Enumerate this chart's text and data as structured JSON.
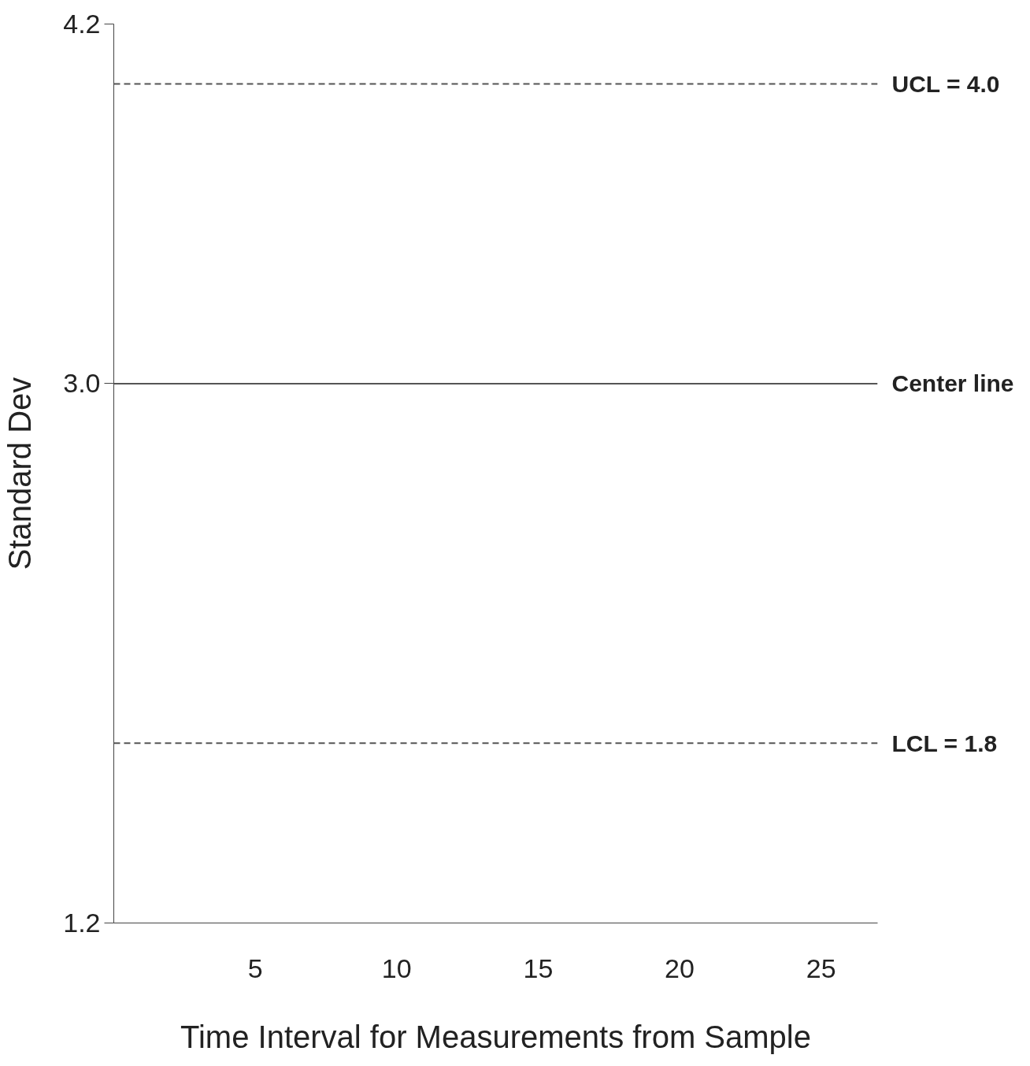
{
  "chart_data": {
    "type": "line",
    "xlabel": "Time Interval for Measurements from Sample",
    "ylabel": "Standard Dev",
    "xlim": [
      0,
      27
    ],
    "xticks": [
      5,
      10,
      15,
      20,
      25
    ],
    "ylim": [
      1.2,
      4.2
    ],
    "yticks": [
      {
        "value": 1.2,
        "label": "1.2"
      },
      {
        "value": 3.0,
        "label": "3.0"
      },
      {
        "value": 4.2,
        "label": "4.2"
      }
    ],
    "ref_lines": [
      {
        "axis": "y",
        "value": 4.0,
        "label": "UCL = 4.0",
        "color": "#555555",
        "line_style": "dashed"
      },
      {
        "axis": "y",
        "value": 3.0,
        "label": "Center line",
        "color": "#555555",
        "line_style": "solid"
      },
      {
        "axis": "y",
        "value": 1.8,
        "label": "LCL = 1.8",
        "color": "#555555",
        "line_style": "dashed"
      }
    ]
  }
}
